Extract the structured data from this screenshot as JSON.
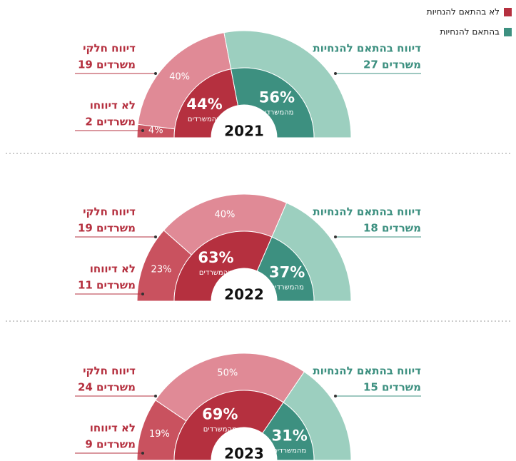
{
  "legend": [
    {
      "name": "לא בהתאם להנחיות",
      "color": "#b5303f"
    },
    {
      "name": "בהתאם להנחיות",
      "color": "#3d9080"
    }
  ],
  "chart_data": [
    {
      "type": "semi-donut",
      "title": "2021",
      "categories": [
        "לא דיווחו",
        "דיווח חלקי",
        "דיווח בהתאם להנחיות"
      ],
      "counts": [
        "2 משרדים",
        "19 משרדים",
        "27 משרדים"
      ],
      "outer": {
        "values": [
          4,
          40,
          56
        ],
        "value_labels": [
          "4%",
          "40%",
          null
        ],
        "colors": [
          "#c9525f",
          "#e08a96",
          "#9ccfbf"
        ]
      },
      "inner": {
        "values": [
          44,
          56
        ],
        "value_labels": [
          "44%",
          "56%"
        ],
        "colors": [
          "#b5303f",
          "#3d9080"
        ],
        "sublabel": "מהמשרדים"
      }
    },
    {
      "type": "semi-donut",
      "title": "2022",
      "categories": [
        "לא דיווחו",
        "דיווח חלקי",
        "דיווח בהתאם להנחיות"
      ],
      "counts": [
        "11 משרדים",
        "19 משרדים",
        "18 משרדים"
      ],
      "outer": {
        "values": [
          23,
          40,
          37
        ],
        "value_labels": [
          "23%",
          "40%",
          null
        ],
        "colors": [
          "#c9525f",
          "#e08a96",
          "#9ccfbf"
        ]
      },
      "inner": {
        "values": [
          63,
          37
        ],
        "value_labels": [
          "63%",
          "37%"
        ],
        "colors": [
          "#b5303f",
          "#3d9080"
        ],
        "sublabel": "מהמשרדים"
      }
    },
    {
      "type": "semi-donut",
      "title": "2023",
      "categories": [
        "לא דיווחו",
        "דיווח חלקי",
        "דיווח בהתאם להנחיות"
      ],
      "counts": [
        "9 משרדים",
        "24 משרדים",
        "15 משרדים"
      ],
      "outer": {
        "values": [
          19,
          50,
          31
        ],
        "value_labels": [
          "19%",
          "50%",
          null
        ],
        "colors": [
          "#c9525f",
          "#e08a96",
          "#9ccfbf"
        ]
      },
      "inner": {
        "values": [
          69,
          31
        ],
        "value_labels": [
          "69%",
          "31%"
        ],
        "colors": [
          "#b5303f",
          "#3d9080"
        ],
        "sublabel": "מהמשרדים"
      }
    }
  ]
}
